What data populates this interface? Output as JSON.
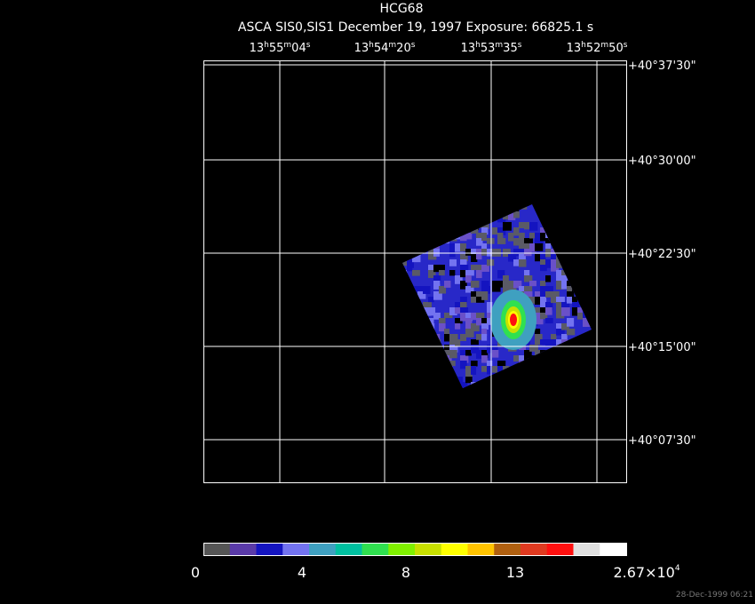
{
  "header": {
    "title": "HCG68",
    "subtitle": "ASCA SIS0,SIS1 December 19, 1997 Exposure: 66825.1 s"
  },
  "ra_labels": [
    [
      "13",
      "h",
      "55",
      "m",
      "04",
      "s"
    ],
    [
      "13",
      "h",
      "54",
      "m",
      "20",
      "s"
    ],
    [
      "13",
      "h",
      "53",
      "m",
      "35",
      "s"
    ],
    [
      "13",
      "h",
      "52",
      "m",
      "50",
      "s"
    ]
  ],
  "dec_labels": [
    "+40°37'30\"",
    "+40°30'00\"",
    "+40°22'30\"",
    "+40°15'00\"",
    "+40°07'30\""
  ],
  "colorbar": {
    "colors": [
      "#555555",
      "#5a3aa8",
      "#1414c0",
      "#7373f0",
      "#3fa0c0",
      "#00c0a0",
      "#30e050",
      "#80f000",
      "#c8e000",
      "#ffff00",
      "#ffc400",
      "#b06010",
      "#e03a20",
      "#ff1010",
      "#e0e0e0",
      "#ffffff"
    ],
    "labels": [
      "0",
      "4",
      "8",
      "13",
      [
        "2.67×10",
        "4"
      ]
    ]
  },
  "timestamp": "28-Dec-1999 06:21"
}
